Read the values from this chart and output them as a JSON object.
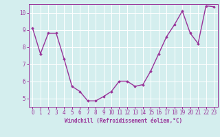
{
  "x": [
    0,
    1,
    2,
    3,
    4,
    5,
    6,
    7,
    8,
    9,
    10,
    11,
    12,
    13,
    14,
    15,
    16,
    17,
    18,
    19,
    20,
    21,
    22,
    23
  ],
  "y": [
    9.1,
    7.6,
    8.8,
    8.8,
    7.3,
    5.7,
    5.4,
    4.85,
    4.85,
    5.1,
    5.4,
    6.0,
    6.0,
    5.7,
    5.8,
    6.6,
    7.6,
    8.6,
    9.3,
    10.1,
    8.8,
    8.2,
    10.4,
    10.35
  ],
  "xlabel": "Windchill (Refroidissement éolien,°C)",
  "xlim": [
    -0.5,
    23.5
  ],
  "ylim": [
    4.5,
    10.5
  ],
  "yticks": [
    5,
    6,
    7,
    8,
    9,
    10
  ],
  "xticks": [
    0,
    1,
    2,
    3,
    4,
    5,
    6,
    7,
    8,
    9,
    10,
    11,
    12,
    13,
    14,
    15,
    16,
    17,
    18,
    19,
    20,
    21,
    22,
    23
  ],
  "line_color": "#993399",
  "marker": "D",
  "marker_size": 1.8,
  "bg_color": "#d4eeee",
  "grid_color": "#ffffff",
  "label_color": "#993399",
  "line_width": 1.0,
  "tick_fontsize": 5.5,
  "xlabel_fontsize": 5.5
}
